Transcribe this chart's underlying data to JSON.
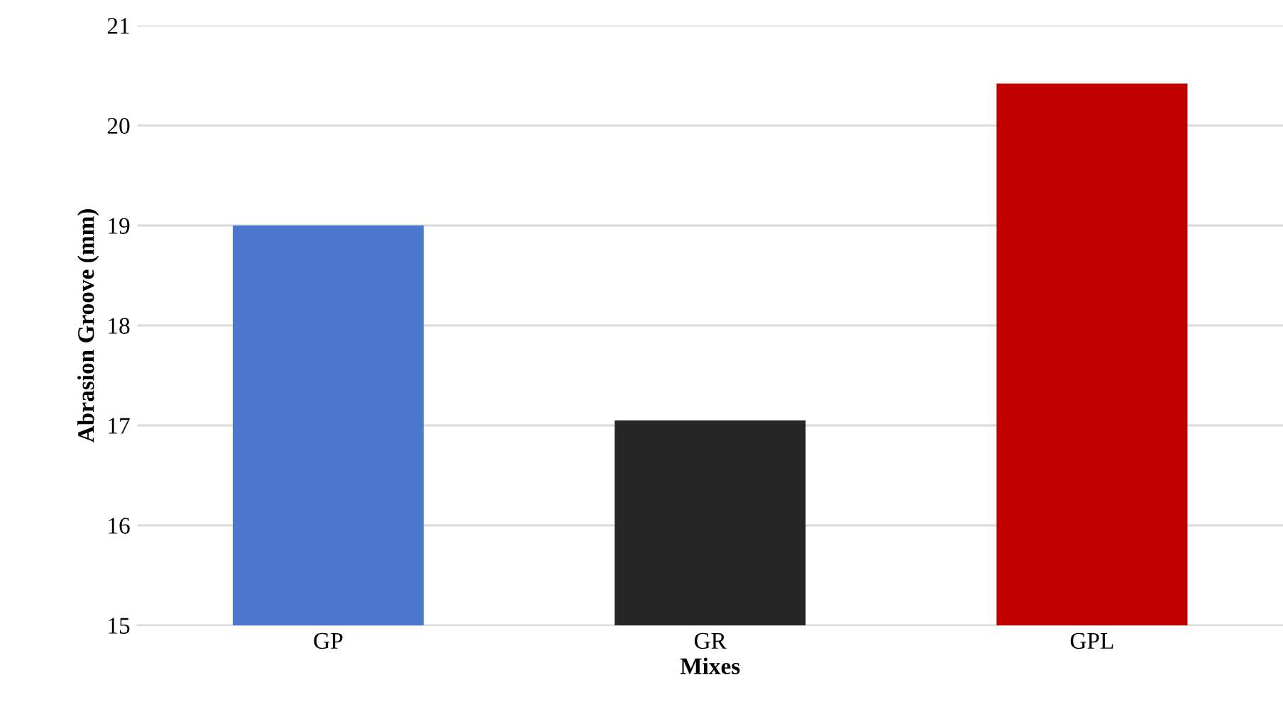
{
  "chart_data": {
    "type": "bar",
    "xlabel": "Mixes",
    "ylabel": "Abrasion Groove (mm)",
    "categories": [
      "GP",
      "GR",
      "GPL"
    ],
    "values": [
      19.0,
      17.05,
      20.42
    ],
    "colors": [
      "#4a78cc",
      "#262626",
      "#c00000"
    ],
    "ylim": [
      15,
      21
    ],
    "yticks": [
      15,
      16,
      17,
      18,
      19,
      20,
      21
    ],
    "grid": "y"
  }
}
